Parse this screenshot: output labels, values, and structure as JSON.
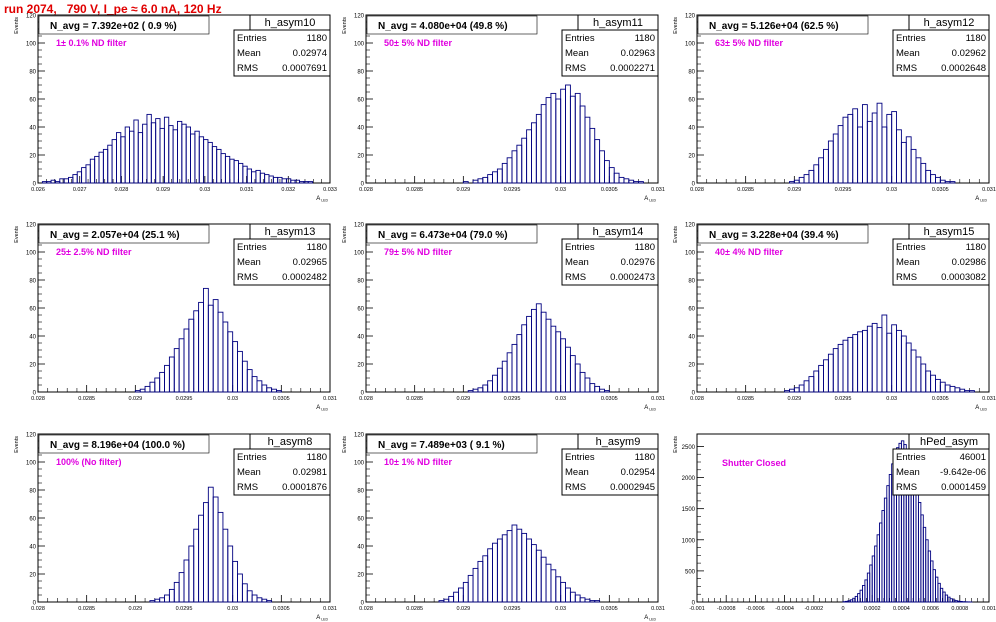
{
  "run_title": "run 2074,   790 V, I_pe ≈ 6.0 nA, 120 Hz",
  "chart_data": [
    {
      "type": "bar",
      "title": "h_asym10",
      "annotation": "N_avg = 7.392e+02 ( 0.9 %)",
      "filter_label": "1± 0.1% ND filter",
      "stats": {
        "entries_label": "Entries",
        "entries": "1180",
        "mean_label": "Mean",
        "mean": "0.02974",
        "rms_label": "RMS",
        "rms": "0.0007691"
      },
      "ylabel": "Events",
      "xlabel": "A_LED",
      "xlim": [
        0.026,
        0.033
      ],
      "ylim": [
        0,
        120
      ],
      "xticks": [
        0.026,
        0.027,
        0.028,
        0.029,
        0.03,
        0.031,
        0.032,
        0.033
      ],
      "xticklabels": [
        "0.026",
        "0.027",
        "0.028",
        "0.029",
        "0.03",
        "0.031",
        "0.032",
        "0.033"
      ],
      "yticks": [
        0,
        20,
        40,
        60,
        80,
        100,
        120
      ],
      "yticklabels": [
        "0",
        "20",
        "40",
        "60",
        "80",
        "100",
        "120"
      ],
      "values": [
        0,
        1,
        1,
        2,
        1,
        3,
        3,
        4,
        6,
        8,
        11,
        13,
        17,
        19,
        22,
        24,
        27,
        31,
        36,
        33,
        40,
        37,
        45,
        36,
        42,
        49,
        43,
        46,
        39,
        47,
        41,
        38,
        44,
        42,
        40,
        35,
        37,
        33,
        31,
        29,
        26,
        24,
        21,
        19,
        17,
        16,
        14,
        12,
        10,
        8,
        9,
        7,
        6,
        5,
        4,
        4,
        3,
        3,
        2,
        2,
        1,
        1,
        1,
        0,
        0,
        0,
        0
      ]
    },
    {
      "type": "bar",
      "title": "h_asym11",
      "annotation": "N_avg = 4.080e+04 (49.8 %)",
      "filter_label": "50± 5% ND filter",
      "stats": {
        "entries_label": "Entries",
        "entries": "1180",
        "mean_label": "Mean",
        "mean": "0.02963",
        "rms_label": "RMS",
        "rms": "0.0002271"
      },
      "ylabel": "Events",
      "xlabel": "A_LED",
      "xlim": [
        0.028,
        0.031
      ],
      "ylim": [
        0,
        120
      ],
      "xticks": [
        0.028,
        0.0285,
        0.029,
        0.0295,
        0.03,
        0.0305,
        0.031
      ],
      "xticklabels": [
        "0.028",
        "0.0285",
        "0.029",
        "0.0295",
        "0.03",
        "0.0305",
        "0.031"
      ],
      "yticks": [
        0,
        20,
        40,
        60,
        80,
        100,
        120
      ],
      "yticklabels": [
        "0",
        "20",
        "40",
        "60",
        "80",
        "100",
        "120"
      ],
      "values": [
        0,
        0,
        0,
        0,
        0,
        0,
        0,
        0,
        0,
        0,
        0,
        0,
        0,
        0,
        0,
        0,
        0,
        0,
        0,
        0,
        1,
        0,
        2,
        3,
        4,
        6,
        8,
        10,
        14,
        18,
        23,
        27,
        32,
        38,
        43,
        49,
        56,
        61,
        64,
        60,
        67,
        70,
        62,
        64,
        55,
        47,
        39,
        31,
        23,
        16,
        11,
        7,
        4,
        3,
        2,
        1,
        1,
        0,
        0,
        0
      ]
    },
    {
      "type": "bar",
      "title": "h_asym12",
      "annotation": "N_avg = 5.126e+04 (62.5 %)",
      "filter_label": "63± 5% ND filter",
      "stats": {
        "entries_label": "Entries",
        "entries": "1180",
        "mean_label": "Mean",
        "mean": "0.02962",
        "rms_label": "RMS",
        "rms": "0.0002648"
      },
      "ylabel": "Events",
      "xlabel": "A_LED",
      "xlim": [
        0.028,
        0.031
      ],
      "ylim": [
        0,
        120
      ],
      "xticks": [
        0.028,
        0.0285,
        0.029,
        0.0295,
        0.03,
        0.0305,
        0.031
      ],
      "xticklabels": [
        "0.028",
        "0.0285",
        "0.029",
        "0.0295",
        "0.03",
        "0.0305",
        "0.031"
      ],
      "yticks": [
        0,
        20,
        40,
        60,
        80,
        100,
        120
      ],
      "yticklabels": [
        "0",
        "20",
        "40",
        "60",
        "80",
        "100",
        "120"
      ],
      "values": [
        0,
        0,
        0,
        0,
        0,
        0,
        0,
        0,
        0,
        0,
        0,
        0,
        0,
        0,
        0,
        0,
        0,
        0,
        0,
        1,
        2,
        4,
        6,
        9,
        13,
        18,
        24,
        30,
        35,
        41,
        47,
        49,
        53,
        40,
        56,
        44,
        50,
        57,
        40,
        49,
        51,
        38,
        29,
        33,
        24,
        18,
        14,
        9,
        6,
        4,
        2,
        1,
        1,
        0,
        0,
        0,
        0,
        0,
        0,
        0
      ]
    },
    {
      "type": "bar",
      "title": "h_asym13",
      "annotation": "N_avg = 2.057e+04 (25.1 %)",
      "filter_label": "25± 2.5% ND filter",
      "stats": {
        "entries_label": "Entries",
        "entries": "1180",
        "mean_label": "Mean",
        "mean": "0.02965",
        "rms_label": "RMS",
        "rms": "0.0002482"
      },
      "ylabel": "Events",
      "xlabel": "A_LED",
      "xlim": [
        0.028,
        0.031
      ],
      "ylim": [
        0,
        120
      ],
      "xticks": [
        0.028,
        0.0285,
        0.029,
        0.0295,
        0.03,
        0.0305,
        0.031
      ],
      "xticklabels": [
        "0.028",
        "0.0285",
        "0.029",
        "0.0295",
        "0.03",
        "0.0305",
        "0.031"
      ],
      "yticks": [
        0,
        20,
        40,
        60,
        80,
        100,
        120
      ],
      "yticklabels": [
        "0",
        "20",
        "40",
        "60",
        "80",
        "100",
        "120"
      ],
      "values": [
        0,
        0,
        0,
        0,
        0,
        0,
        0,
        0,
        0,
        0,
        0,
        0,
        0,
        0,
        0,
        0,
        0,
        0,
        0,
        0,
        1,
        2,
        4,
        7,
        10,
        14,
        19,
        25,
        31,
        38,
        45,
        52,
        58,
        64,
        74,
        62,
        66,
        57,
        50,
        43,
        36,
        29,
        22,
        16,
        11,
        8,
        5,
        3,
        2,
        1,
        0,
        0,
        0,
        0,
        0,
        0,
        0,
        0,
        0,
        0
      ]
    },
    {
      "type": "bar",
      "title": "h_asym14",
      "annotation": "N_avg = 6.473e+04 (79.0 %)",
      "filter_label": "79± 5% ND filter",
      "stats": {
        "entries_label": "Entries",
        "entries": "1180",
        "mean_label": "Mean",
        "mean": "0.02976",
        "rms_label": "RMS",
        "rms": "0.0002473"
      },
      "ylabel": "Events",
      "xlabel": "A_LED",
      "xlim": [
        0.028,
        0.031
      ],
      "ylim": [
        0,
        120
      ],
      "xticks": [
        0.028,
        0.0285,
        0.029,
        0.0295,
        0.03,
        0.0305,
        0.031
      ],
      "xticklabels": [
        "0.028",
        "0.0285",
        "0.029",
        "0.0295",
        "0.03",
        "0.0305",
        "0.031"
      ],
      "yticks": [
        0,
        20,
        40,
        60,
        80,
        100,
        120
      ],
      "yticklabels": [
        "0",
        "20",
        "40",
        "60",
        "80",
        "100",
        "120"
      ],
      "values": [
        0,
        0,
        0,
        0,
        0,
        0,
        0,
        0,
        0,
        0,
        0,
        0,
        0,
        0,
        0,
        0,
        0,
        0,
        0,
        0,
        0,
        1,
        2,
        3,
        5,
        8,
        12,
        17,
        22,
        28,
        34,
        41,
        48,
        54,
        59,
        63,
        57,
        52,
        47,
        43,
        38,
        32,
        26,
        20,
        14,
        10,
        6,
        4,
        2,
        1,
        0,
        0,
        0,
        0,
        0,
        0,
        0,
        0,
        0,
        0
      ]
    },
    {
      "type": "bar",
      "title": "h_asym15",
      "annotation": "N_avg = 3.228e+04 (39.4 %)",
      "filter_label": "40± 4% ND filter",
      "stats": {
        "entries_label": "Entries",
        "entries": "1180",
        "mean_label": "Mean",
        "mean": "0.02986",
        "rms_label": "RMS",
        "rms": "0.0003082"
      },
      "ylabel": "Events",
      "xlabel": "A_LED",
      "xlim": [
        0.028,
        0.031
      ],
      "ylim": [
        0,
        120
      ],
      "xticks": [
        0.028,
        0.0285,
        0.029,
        0.0295,
        0.03,
        0.0305,
        0.031
      ],
      "xticklabels": [
        "0.028",
        "0.0285",
        "0.029",
        "0.0295",
        "0.03",
        "0.0305",
        "0.031"
      ],
      "yticks": [
        0,
        20,
        40,
        60,
        80,
        100,
        120
      ],
      "yticklabels": [
        "0",
        "20",
        "40",
        "60",
        "80",
        "100",
        "120"
      ],
      "values": [
        0,
        0,
        0,
        0,
        0,
        0,
        0,
        0,
        0,
        0,
        0,
        0,
        0,
        0,
        0,
        0,
        0,
        0,
        1,
        2,
        3,
        5,
        8,
        11,
        15,
        19,
        23,
        27,
        31,
        34,
        37,
        39,
        41,
        43,
        44,
        47,
        49,
        46,
        55,
        42,
        48,
        44,
        40,
        35,
        30,
        25,
        20,
        15,
        12,
        9,
        7,
        5,
        4,
        3,
        2,
        1,
        1,
        0,
        0,
        0
      ]
    },
    {
      "type": "bar",
      "title": "h_asym8",
      "annotation": "N_avg = 8.196e+04 (100.0 %)",
      "filter_label": "100% (No filter)",
      "stats": {
        "entries_label": "Entries",
        "entries": "1180",
        "mean_label": "Mean",
        "mean": "0.02981",
        "rms_label": "RMS",
        "rms": "0.0001876"
      },
      "ylabel": "Events",
      "xlabel": "A_LED",
      "xlim": [
        0.028,
        0.031
      ],
      "ylim": [
        0,
        120
      ],
      "xticks": [
        0.028,
        0.0285,
        0.029,
        0.0295,
        0.03,
        0.0305,
        0.031
      ],
      "xticklabels": [
        "0.028",
        "0.0285",
        "0.029",
        "0.0295",
        "0.03",
        "0.0305",
        "0.031"
      ],
      "yticks": [
        0,
        20,
        40,
        60,
        80,
        100,
        120
      ],
      "yticklabels": [
        "0",
        "20",
        "40",
        "60",
        "80",
        "100",
        "120"
      ],
      "values": [
        0,
        0,
        0,
        0,
        0,
        0,
        0,
        0,
        0,
        0,
        0,
        0,
        0,
        0,
        0,
        0,
        0,
        0,
        0,
        0,
        0,
        0,
        0,
        1,
        2,
        3,
        5,
        9,
        14,
        21,
        30,
        40,
        52,
        62,
        71,
        82,
        75,
        64,
        52,
        40,
        29,
        20,
        13,
        8,
        5,
        3,
        2,
        1,
        0,
        0,
        0,
        0,
        0,
        0,
        0,
        0,
        0,
        0,
        0,
        0
      ]
    },
    {
      "type": "bar",
      "title": "h_asym9",
      "annotation": "N_avg = 7.489e+03 ( 9.1 %)",
      "filter_label": "10± 1% ND filter",
      "stats": {
        "entries_label": "Entries",
        "entries": "1180",
        "mean_label": "Mean",
        "mean": "0.02954",
        "rms_label": "RMS",
        "rms": "0.0002945"
      },
      "ylabel": "Events",
      "xlabel": "A_LED",
      "xlim": [
        0.028,
        0.031
      ],
      "ylim": [
        0,
        120
      ],
      "xticks": [
        0.028,
        0.0285,
        0.029,
        0.0295,
        0.03,
        0.0305,
        0.031
      ],
      "xticklabels": [
        "0.028",
        "0.0285",
        "0.029",
        "0.0295",
        "0.03",
        "0.0305",
        "0.031"
      ],
      "yticks": [
        0,
        20,
        40,
        60,
        80,
        100,
        120
      ],
      "yticklabels": [
        "0",
        "20",
        "40",
        "60",
        "80",
        "100",
        "120"
      ],
      "values": [
        0,
        0,
        0,
        0,
        0,
        0,
        0,
        0,
        0,
        0,
        0,
        0,
        0,
        0,
        0,
        1,
        2,
        4,
        7,
        10,
        14,
        19,
        24,
        29,
        33,
        38,
        42,
        45,
        48,
        51,
        55,
        52,
        49,
        45,
        41,
        37,
        32,
        27,
        23,
        18,
        14,
        10,
        7,
        5,
        3,
        2,
        1,
        1,
        0,
        0,
        0,
        0,
        0,
        0,
        0,
        0,
        0,
        0,
        0,
        0
      ]
    },
    {
      "type": "bar",
      "title": "hPed_asym",
      "annotation": "",
      "filter_label": "Shutter Closed",
      "stats": {
        "entries_label": "Entries",
        "entries": "46001",
        "mean_label": "Mean",
        "mean": "-9.642e-06",
        "rms_label": "RMS",
        "rms": "0.0001459"
      },
      "ylabel": "Events",
      "xlabel": "",
      "xlim": [
        -0.001,
        0.001
      ],
      "ylim": [
        0,
        2700
      ],
      "xticks": [
        -0.001,
        -0.0008,
        -0.0006,
        -0.0004,
        -0.0002,
        0,
        0.0002,
        0.0004,
        0.0006,
        0.0008,
        0.001
      ],
      "xticklabels": [
        "-0.001",
        "-0.0008",
        "-0.0006",
        "-0.0004",
        "-0.0002",
        "0",
        "0.0002",
        "0.0004",
        "0.0006",
        "0.0008",
        "0.001"
      ],
      "yticks": [
        0,
        500,
        1000,
        1500,
        2000,
        2500
      ],
      "yticklabels": [
        "0",
        "500",
        "1000",
        "1500",
        "2000",
        "2500"
      ],
      "values": [
        0,
        0,
        0,
        0,
        0,
        0,
        0,
        0,
        0,
        0,
        0,
        0,
        0,
        0,
        0,
        0,
        0,
        0,
        0,
        0,
        0,
        0,
        0,
        0,
        0,
        0,
        0,
        0,
        0,
        0,
        0,
        0,
        0,
        0,
        0,
        0,
        0,
        0,
        0,
        0,
        0,
        0,
        0,
        0,
        0,
        0,
        0,
        0,
        0,
        0,
        0,
        0,
        0,
        0,
        0,
        0,
        0,
        0,
        0,
        0,
        5,
        10,
        20,
        35,
        60,
        90,
        135,
        190,
        265,
        355,
        465,
        595,
        740,
        900,
        1080,
        1270,
        1470,
        1670,
        1870,
        2050,
        2220,
        2370,
        2480,
        2550,
        2590,
        2530,
        2450,
        2320,
        2170,
        1990,
        1800,
        1600,
        1400,
        1200,
        1000,
        820,
        660,
        520,
        400,
        300,
        220,
        160,
        112,
        78,
        52,
        34,
        22,
        14,
        9,
        5,
        3,
        2,
        1,
        0,
        0,
        0,
        0,
        0,
        0,
        0
      ]
    }
  ]
}
